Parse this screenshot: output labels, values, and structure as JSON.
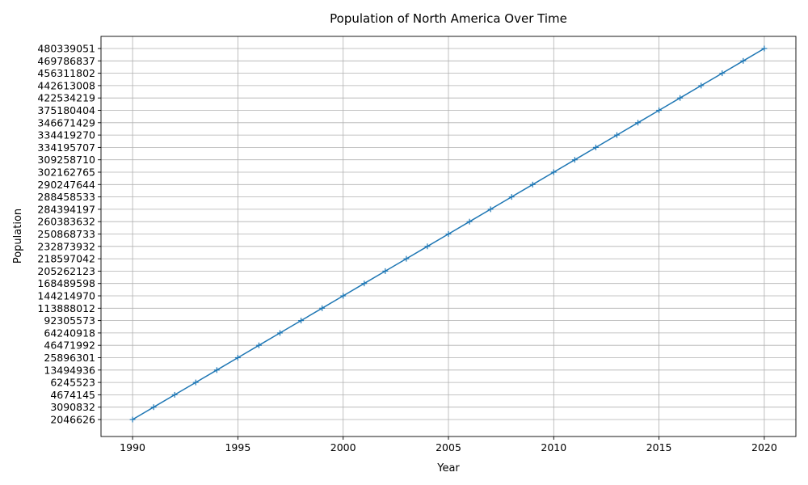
{
  "chart_data": {
    "type": "line",
    "title": "Population of North America Over Time",
    "xlabel": "Year",
    "ylabel": "Population",
    "grid": true,
    "color": "#1f77b4",
    "marker": "+",
    "y_axis_categorical": true,
    "x": [
      1990,
      1991,
      1992,
      1993,
      1994,
      1995,
      1996,
      1997,
      1998,
      1999,
      2000,
      2001,
      2002,
      2003,
      2004,
      2005,
      2006,
      2007,
      2008,
      2009,
      2010,
      2011,
      2012,
      2013,
      2014,
      2015,
      2016,
      2017,
      2018,
      2019,
      2020
    ],
    "y": [
      "2046626",
      "3090832",
      "4674145",
      "6245523",
      "13494936",
      "25896301",
      "46471992",
      "64240918",
      "92305573",
      "113888012",
      "144214970",
      "168489598",
      "205262123",
      "218597042",
      "232873932",
      "250868733",
      "260383632",
      "284394197",
      "288458533",
      "290247644",
      "302162765",
      "309258710",
      "334195707",
      "334419270",
      "346671429",
      "375180404",
      "422534219",
      "442613008",
      "456311802",
      "469786837",
      "480339051"
    ],
    "xticks": [
      1990,
      1995,
      2000,
      2005,
      2010,
      2015,
      2020
    ],
    "xlim": [
      1988.5,
      2021.5
    ]
  }
}
